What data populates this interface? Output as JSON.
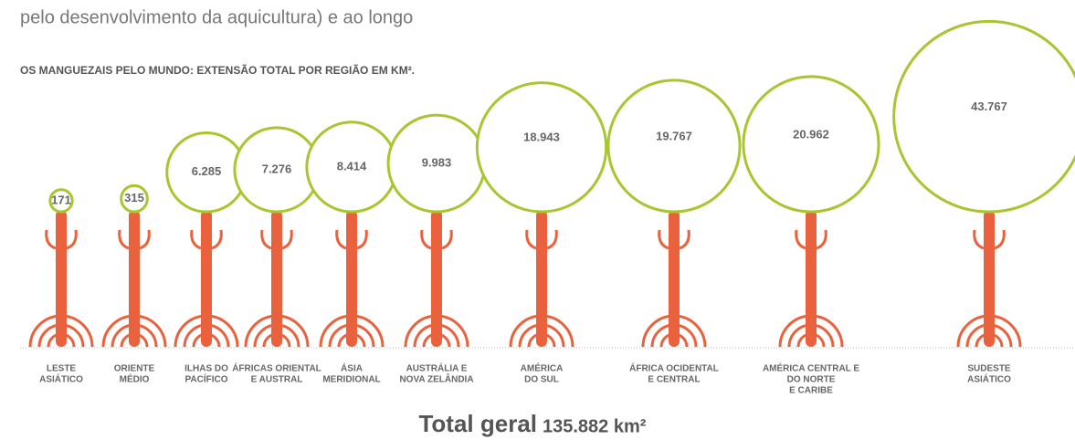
{
  "intro_text": "pelo desenvolvimento da aquicultura) e ao longo",
  "chart_data": {
    "type": "bubble-pole",
    "title": "OS MANGUEZAIS PELO MUNDO: EXTENSÃO TOTAL POR REGIÃO EM KM².",
    "categories": [
      [
        "LESTE",
        "ASIÁTICO"
      ],
      [
        "ORIENTE",
        "MÉDIO"
      ],
      [
        "ILHAS DO",
        "PACÍFICO"
      ],
      [
        "ÁFRICAS ORIENTAL",
        "E AUSTRAL"
      ],
      [
        "ÁSIA",
        "MERIDIONAL"
      ],
      [
        "AUSTRÁLIA E",
        "NOVA ZELÂNDIA"
      ],
      [
        "AMÉRICA",
        "DO SUL"
      ],
      [
        "ÁFRICA OCIDENTAL",
        "E CENTRAL"
      ],
      [
        "AMÉRICA CENTRAL E",
        "DO NORTE",
        "E CARIBE"
      ],
      [
        "SUDESTE",
        "ASIÁTICO"
      ]
    ],
    "values": [
      171,
      315,
      6285,
      7276,
      8414,
      9983,
      18943,
      19767,
      20962,
      43767
    ],
    "value_labels": [
      "171",
      "315",
      "6.285",
      "7.276",
      "8.414",
      "9.983",
      "18.943",
      "19.767",
      "20.962",
      "43.767"
    ],
    "circle_color": "#a9c52f",
    "pole_color": "#e9623d",
    "total_title": "Total geral",
    "total_value": "135.882 km²"
  }
}
